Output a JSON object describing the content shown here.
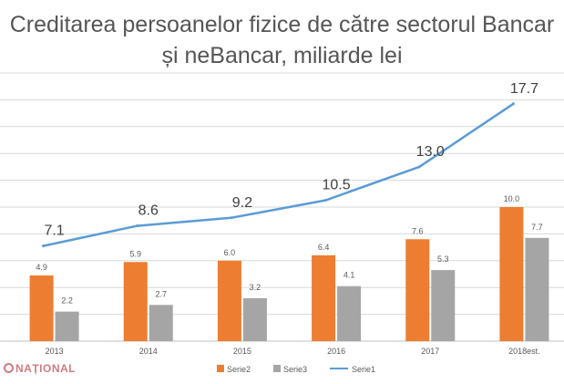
{
  "page": {
    "title": "Creditarea persoanelor fizice de către sectorul Bancar și neBancar, miliarde lei",
    "watermark": "NAȚIONAL",
    "colors": {
      "serie2": "#ed7d31",
      "serie3": "#a5a5a5",
      "serie1": "#5b9bd5",
      "grid": "#d9d9d9",
      "axis": "#bfbfbf",
      "text": "#595959",
      "watermark": "#c9656b"
    }
  },
  "chart_data": {
    "type": "bar",
    "title": "Creditarea persoanelor fizice de către sectorul Bancar și neBancar, miliarde lei",
    "categories": [
      "2013",
      "2014",
      "2015",
      "2016",
      "2017",
      "2018est."
    ],
    "series": [
      {
        "name": "Serie2",
        "type": "bar",
        "values": [
          4.9,
          5.9,
          6.0,
          6.4,
          7.6,
          10.0
        ],
        "labels": [
          "4.9",
          "5.9",
          "6.0",
          "6.4",
          "7.6",
          "10.0"
        ]
      },
      {
        "name": "Serie3",
        "type": "bar",
        "values": [
          2.2,
          2.7,
          3.2,
          4.1,
          5.3,
          7.7
        ],
        "labels": [
          "2.2",
          "2.7",
          "3.2",
          "4.1",
          "5.3",
          "7.7"
        ]
      },
      {
        "name": "Serie1",
        "type": "line",
        "values": [
          7.1,
          8.6,
          9.2,
          10.5,
          13.0,
          17.7
        ],
        "labels": [
          "7.1",
          "8.6",
          "9.2",
          "10.5",
          "13.0",
          "17.7"
        ]
      }
    ],
    "ylim": [
      0,
      20
    ],
    "grid": true,
    "legend_position": "bottom"
  }
}
